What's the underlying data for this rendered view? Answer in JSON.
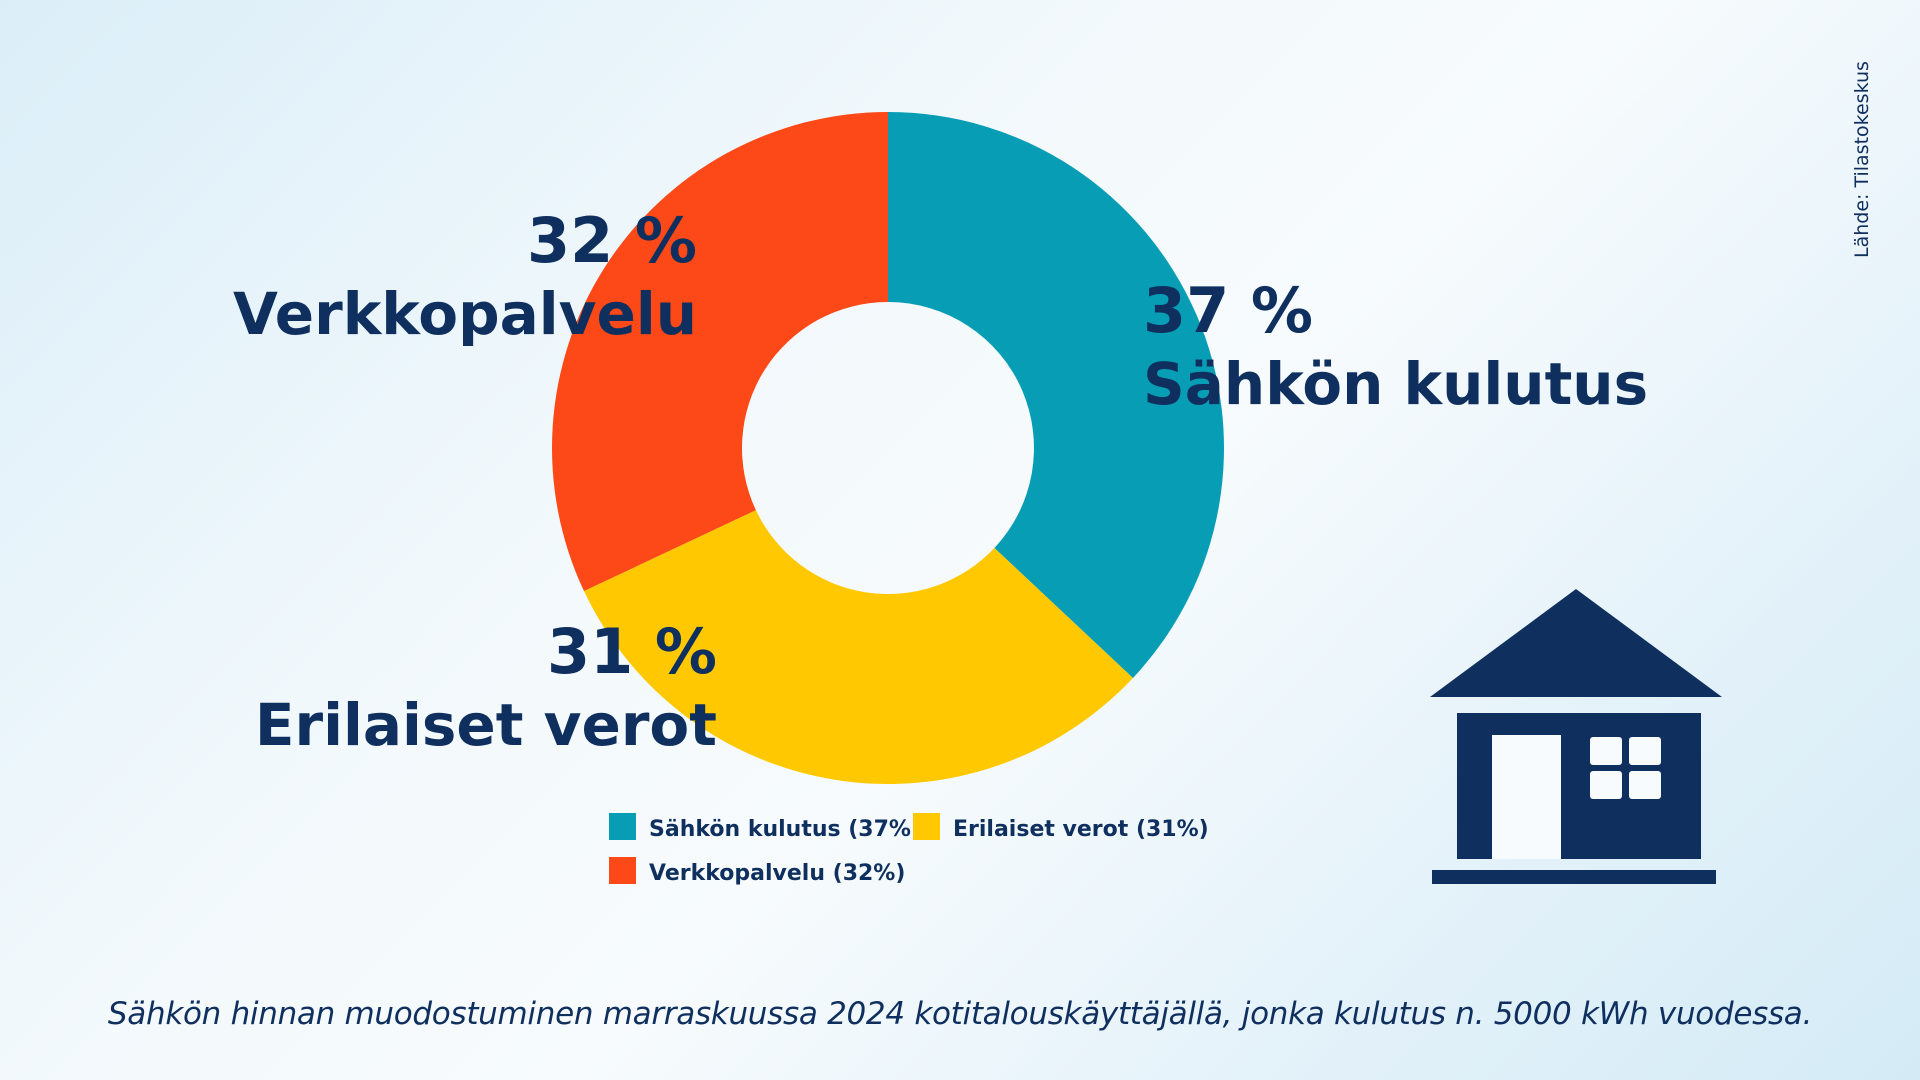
{
  "chart_data": {
    "type": "pie",
    "donut": true,
    "categories": [
      "Sähkön kulutus",
      "Erilaiset verot",
      "Verkkopalvelu"
    ],
    "values": [
      37,
      31,
      32
    ],
    "colors": [
      "#069db5",
      "#ffc800",
      "#fc4917"
    ],
    "slice_labels": [
      {
        "percent": "37 %",
        "name": "Sähkön kulutus"
      },
      {
        "percent": "31 %",
        "name": "Erilaiset verot"
      },
      {
        "percent": "32 %",
        "name": "Verkkopalvelu"
      }
    ],
    "legend": [
      "Sähkön kulutus (37%)",
      "Erilaiset verot (31%)",
      "Verkkopalvelu (32%)"
    ],
    "legend_placement": "bottom",
    "title": "",
    "caption": "Sähkön hinnan muodostuminen marraskuussa 2024 kotitalouskäyttäjällä, jonka kulutus n. 5000 kWh vuodessa.",
    "source": "Lähde: Tilastokeskus"
  },
  "decoration": {
    "icon": "house-icon",
    "color": "#0f2f5f"
  }
}
